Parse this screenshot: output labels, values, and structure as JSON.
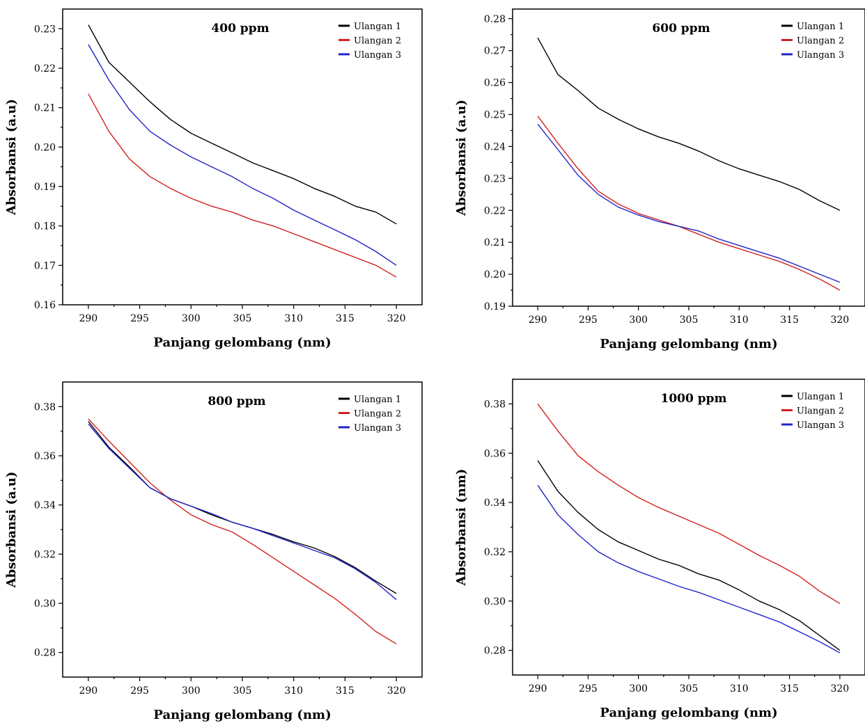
{
  "colors": {
    "ulangan_1": "#000000",
    "ulangan_2": "#d42020",
    "ulangan_3": "#1f24c8"
  },
  "chart_data": [
    {
      "type": "line",
      "title": "400 ppm",
      "xlabel": "Panjang gelombang (nm)",
      "ylabel": "Absorbansi (a.u)",
      "xlim": [
        287.5,
        322.5
      ],
      "ylim": [
        0.16,
        0.235
      ],
      "xticks": [
        "290",
        "295",
        "300",
        "305",
        "310",
        "315",
        "320"
      ],
      "yticks": [
        "0.16",
        "0.17",
        "0.18",
        "0.19",
        "0.20",
        "0.21",
        "0.22",
        "0.23"
      ],
      "legend": "top-right",
      "x": [
        290,
        292,
        294,
        296,
        298,
        300,
        302,
        304,
        306,
        308,
        310,
        312,
        314,
        316,
        318,
        320
      ],
      "series": [
        {
          "name": "Ulangan 1",
          "color": "#000000",
          "values": [
            0.231,
            0.2215,
            0.2165,
            0.2115,
            0.207,
            0.2035,
            0.201,
            0.1985,
            0.196,
            0.194,
            0.192,
            0.1895,
            0.1875,
            0.185,
            0.1835,
            0.1805
          ]
        },
        {
          "name": "Ulangan 2",
          "color": "#d42020",
          "values": [
            0.2135,
            0.204,
            0.197,
            0.1925,
            0.1895,
            0.187,
            0.185,
            0.1835,
            0.1815,
            0.18,
            0.178,
            0.176,
            0.174,
            0.172,
            0.17,
            0.167
          ]
        },
        {
          "name": "Ulangan 3",
          "color": "#1f24c8",
          "values": [
            0.226,
            0.217,
            0.2095,
            0.204,
            0.2005,
            0.1975,
            0.195,
            0.1925,
            0.1895,
            0.187,
            0.184,
            0.1815,
            0.179,
            0.1765,
            0.1735,
            0.17
          ]
        }
      ]
    },
    {
      "type": "line",
      "title": "600 ppm",
      "xlabel": "Panjang gelombang (nm)",
      "ylabel": "Absorbansi (a.u)",
      "xlim": [
        287.5,
        322.5
      ],
      "ylim": [
        0.19,
        0.283
      ],
      "xticks": [
        "290",
        "295",
        "300",
        "305",
        "310",
        "315",
        "320"
      ],
      "yticks": [
        "0.19",
        "0.20",
        "0.21",
        "0.22",
        "0.23",
        "0.24",
        "0.25",
        "0.26",
        "0.27",
        "0.28"
      ],
      "legend": "top-right",
      "x": [
        290,
        292,
        294,
        296,
        298,
        300,
        302,
        304,
        306,
        308,
        310,
        312,
        314,
        316,
        318,
        320
      ],
      "series": [
        {
          "name": "Ulangan 1",
          "color": "#000000",
          "values": [
            0.274,
            0.2625,
            0.2575,
            0.252,
            0.2485,
            0.2455,
            0.243,
            0.241,
            0.2385,
            0.2355,
            0.233,
            0.231,
            0.229,
            0.2265,
            0.223,
            0.22
          ]
        },
        {
          "name": "Ulangan 2",
          "color": "#d42020",
          "values": [
            0.2495,
            0.241,
            0.233,
            0.226,
            0.222,
            0.219,
            0.217,
            0.215,
            0.2125,
            0.21,
            0.208,
            0.206,
            0.204,
            0.2015,
            0.1985,
            0.195
          ]
        },
        {
          "name": "Ulangan 3",
          "color": "#1f24c8",
          "values": [
            0.247,
            0.239,
            0.231,
            0.225,
            0.221,
            0.2185,
            0.2165,
            0.215,
            0.2135,
            0.211,
            0.209,
            0.207,
            0.205,
            0.2025,
            0.2,
            0.1975
          ]
        }
      ]
    },
    {
      "type": "line",
      "title": "800 ppm",
      "xlabel": "Panjang gelombang (nm)",
      "ylabel": "Absorbansi (a.u)",
      "xlim": [
        287.5,
        322.5
      ],
      "ylim": [
        0.27,
        0.39
      ],
      "xticks": [
        "290",
        "295",
        "300",
        "305",
        "310",
        "315",
        "320"
      ],
      "yticks": [
        "0.28",
        "0.30",
        "0.32",
        "0.34",
        "0.36",
        "0.38"
      ],
      "legend": "top-right",
      "x": [
        290,
        292,
        294,
        296,
        298,
        300,
        302,
        304,
        306,
        308,
        310,
        312,
        314,
        316,
        318,
        320
      ],
      "series": [
        {
          "name": "Ulangan 1",
          "color": "#000000",
          "values": [
            0.374,
            0.3635,
            0.3555,
            0.347,
            0.3425,
            0.3395,
            0.336,
            0.333,
            0.3305,
            0.328,
            0.325,
            0.3225,
            0.319,
            0.3145,
            0.309,
            0.304
          ]
        },
        {
          "name": "Ulangan 2",
          "color": "#d42020",
          "values": [
            0.375,
            0.366,
            0.3575,
            0.349,
            0.342,
            0.336,
            0.332,
            0.329,
            0.324,
            0.3185,
            0.313,
            0.3075,
            0.302,
            0.2955,
            0.2885,
            0.2835
          ]
        },
        {
          "name": "Ulangan 3",
          "color": "#1f24c8",
          "values": [
            0.373,
            0.363,
            0.355,
            0.347,
            0.3425,
            0.3395,
            0.3365,
            0.333,
            0.3305,
            0.3275,
            0.3245,
            0.3215,
            0.3185,
            0.314,
            0.3085,
            0.3015
          ]
        }
      ]
    },
    {
      "type": "line",
      "title": "1000 ppm",
      "xlabel": "Panjang gelombang (nm)",
      "ylabel": "Absorbansi (nm)",
      "xlim": [
        287.5,
        322.5
      ],
      "ylim": [
        0.27,
        0.39
      ],
      "xticks": [
        "290",
        "295",
        "300",
        "305",
        "310",
        "315",
        "320"
      ],
      "yticks": [
        "0.28",
        "0.30",
        "0.32",
        "0.34",
        "0.36",
        "0.38"
      ],
      "legend": "top-right",
      "x": [
        290,
        292,
        294,
        296,
        298,
        300,
        302,
        304,
        306,
        308,
        310,
        312,
        314,
        316,
        318,
        320
      ],
      "series": [
        {
          "name": "Ulangan 1",
          "color": "#000000",
          "values": [
            0.357,
            0.3445,
            0.336,
            0.329,
            0.324,
            0.3205,
            0.317,
            0.3145,
            0.311,
            0.3085,
            0.3045,
            0.3,
            0.2965,
            0.292,
            0.286,
            0.28
          ]
        },
        {
          "name": "Ulangan 2",
          "color": "#d42020",
          "values": [
            0.38,
            0.369,
            0.359,
            0.3525,
            0.347,
            0.342,
            0.338,
            0.3345,
            0.331,
            0.3275,
            0.323,
            0.3185,
            0.3145,
            0.31,
            0.304,
            0.299
          ]
        },
        {
          "name": "Ulangan 3",
          "color": "#1f24c8",
          "values": [
            0.347,
            0.335,
            0.327,
            0.32,
            0.3155,
            0.312,
            0.309,
            0.306,
            0.3035,
            0.3005,
            0.2975,
            0.2945,
            0.2915,
            0.2875,
            0.2835,
            0.279
          ]
        }
      ]
    }
  ]
}
